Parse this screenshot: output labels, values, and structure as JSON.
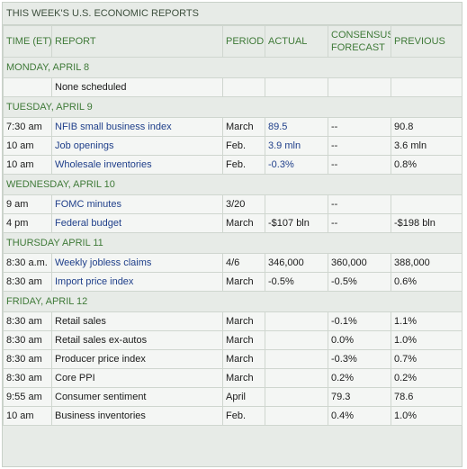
{
  "title": "THIS WEEK'S U.S. ECONOMIC REPORTS",
  "headers": {
    "time": "TIME (ET)",
    "report": "REPORT",
    "period": "PERIOD",
    "actual": "ACTUAL",
    "consensus": "CONSENSUS FORECAST",
    "previous": "PREVIOUS"
  },
  "days": [
    {
      "day": "MONDAY, APRIL 8",
      "rows": [
        {
          "time": "",
          "report": "None scheduled",
          "link": false,
          "period": "",
          "actual": "",
          "consensus": "",
          "previous": ""
        }
      ]
    },
    {
      "day": "TUESDAY, APRIL 9",
      "rows": [
        {
          "time": "7:30 am",
          "report": "NFIB small business index",
          "link": true,
          "period": "March",
          "actual": "89.5",
          "actual_link": true,
          "consensus": "--",
          "previous": "90.8"
        },
        {
          "time": "10 am",
          "report": "Job openings",
          "link": true,
          "period": "Feb.",
          "actual": "3.9 mln",
          "actual_link": true,
          "consensus": "--",
          "previous": "3.6 mln"
        },
        {
          "time": "10 am",
          "report": "Wholesale inventories",
          "link": true,
          "period": "Feb.",
          "actual": "-0.3%",
          "actual_link": true,
          "consensus": "--",
          "previous": "0.8%"
        }
      ]
    },
    {
      "day": "WEDNESDAY, APRIL 10",
      "rows": [
        {
          "time": "9 am",
          "report": "FOMC minutes",
          "link": true,
          "period": "3/20",
          "actual": "",
          "consensus": "--",
          "previous": ""
        },
        {
          "time": "4 pm",
          "report": "Federal budget",
          "link": true,
          "period": "March",
          "actual": "-$107 bln",
          "actual_link": false,
          "consensus": "--",
          "previous": "-$198 bln"
        }
      ]
    },
    {
      "day": "THURSDAY APRIL 11",
      "rows": [
        {
          "time": "8:30 a.m.",
          "report": "Weekly jobless claims",
          "link": true,
          "period": "4/6",
          "actual": "346,000",
          "actual_link": false,
          "consensus": "360,000",
          "previous": "388,000"
        },
        {
          "time": "8:30 am",
          "report": "Import price index",
          "link": true,
          "period": "March",
          "actual": "-0.5%",
          "actual_link": false,
          "consensus": "-0.5%",
          "previous": "0.6%"
        }
      ]
    },
    {
      "day": "FRIDAY, APRIL 12",
      "rows": [
        {
          "time": "8:30 am",
          "report": "Retail sales",
          "link": false,
          "period": "March",
          "actual": "",
          "consensus": "-0.1%",
          "previous": "1.1%"
        },
        {
          "time": "8:30 am",
          "report": "Retail sales ex-autos",
          "link": false,
          "period": "March",
          "actual": "",
          "consensus": "0.0%",
          "previous": "1.0%"
        },
        {
          "time": "8:30 am",
          "report": "Producer price index",
          "link": false,
          "period": "March",
          "actual": "",
          "consensus": "-0.3%",
          "previous": "0.7%"
        },
        {
          "time": "8:30 am",
          "report": "Core PPI",
          "link": false,
          "period": "March",
          "actual": "",
          "consensus": "0.2%",
          "previous": "0.2%"
        },
        {
          "time": "9:55 am",
          "report": "Consumer sentiment",
          "link": false,
          "period": "April",
          "actual": "",
          "consensus": "79.3",
          "previous": "78.6"
        },
        {
          "time": "10 am",
          "report": "Business inventories",
          "link": false,
          "period": "Feb.",
          "actual": "",
          "consensus": "0.4%",
          "previous": "1.0%"
        }
      ]
    }
  ]
}
